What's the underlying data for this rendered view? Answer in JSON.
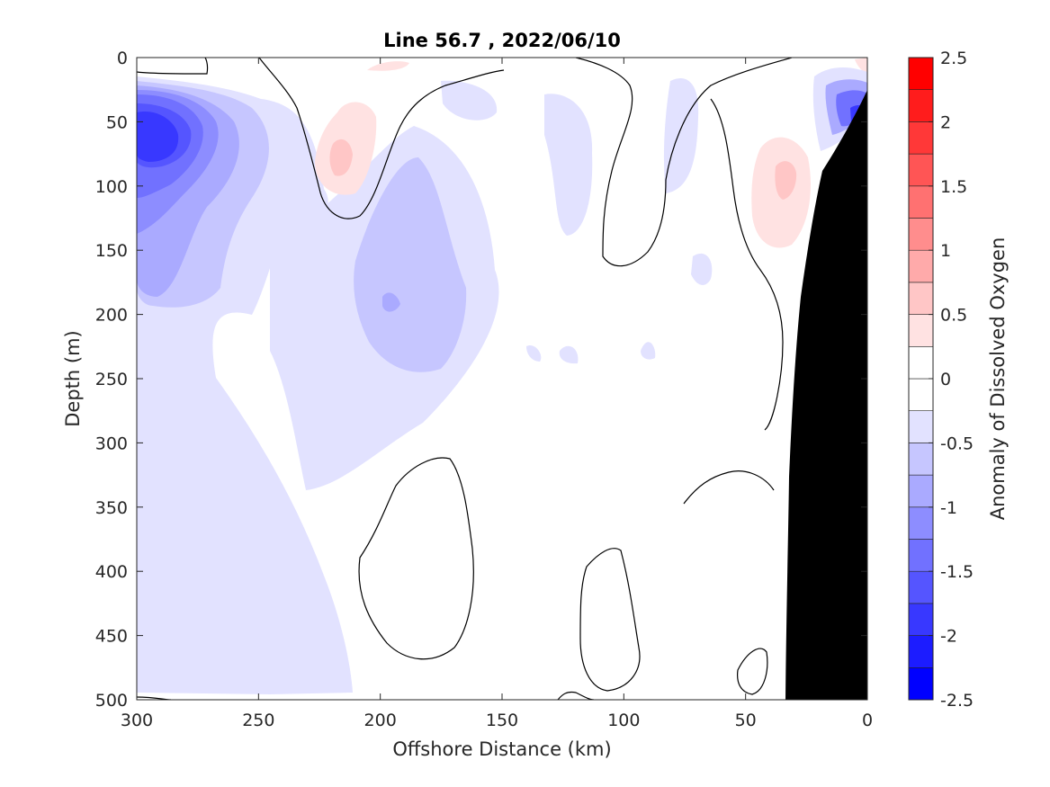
{
  "chart_data": {
    "type": "heatmap",
    "title": "Line 56.7 , 2022/06/10",
    "xlabel": "Offshore Distance (km)",
    "ylabel": "Depth (m)",
    "xlim": [
      300,
      0
    ],
    "ylim": [
      0,
      500
    ],
    "x_reversed": true,
    "y_reversed": true,
    "x_ticks": [
      {
        "value": 300,
        "label": "300"
      },
      {
        "value": 250,
        "label": "250"
      },
      {
        "value": 200,
        "label": "200"
      },
      {
        "value": 150,
        "label": "150"
      },
      {
        "value": 100,
        "label": "100"
      },
      {
        "value": 50,
        "label": "50"
      },
      {
        "value": 0,
        "label": "0"
      }
    ],
    "y_ticks": [
      {
        "value": 0,
        "label": "0"
      },
      {
        "value": 50,
        "label": "50"
      },
      {
        "value": 100,
        "label": "100"
      },
      {
        "value": 150,
        "label": "150"
      },
      {
        "value": 200,
        "label": "200"
      },
      {
        "value": 250,
        "label": "250"
      },
      {
        "value": 300,
        "label": "300"
      },
      {
        "value": 350,
        "label": "350"
      },
      {
        "value": 400,
        "label": "400"
      },
      {
        "value": 450,
        "label": "450"
      },
      {
        "value": 500,
        "label": "500"
      }
    ],
    "colorbar": {
      "label": "Anomaly of Dissolved Oxygen",
      "range": [
        -2.5,
        2.5
      ],
      "levels": [
        -2.5,
        -2.25,
        -2,
        -1.75,
        -1.5,
        -1.25,
        -1,
        -0.75,
        -0.5,
        -0.25,
        0,
        0.25,
        0.5,
        0.75,
        1,
        1.25,
        1.5,
        1.75,
        2,
        2.25,
        2.5
      ],
      "colors": [
        "#0000ff",
        "#1c1cff",
        "#3838ff",
        "#5555ff",
        "#7171ff",
        "#8d8dff",
        "#aaaaff",
        "#c6c6ff",
        "#e2e2ff",
        "#ffffff",
        "#ffffff",
        "#ffe2e2",
        "#ffc6c6",
        "#ffaaaa",
        "#ff8d8d",
        "#ff7171",
        "#ff5555",
        "#ff3838",
        "#ff1c1c",
        "#ff0000"
      ],
      "ticks": [
        {
          "value": 2.5,
          "label": "2.5"
        },
        {
          "value": 2,
          "label": "2"
        },
        {
          "value": 1.5,
          "label": "1.5"
        },
        {
          "value": 1,
          "label": "1"
        },
        {
          "value": 0.5,
          "label": "0.5"
        },
        {
          "value": 0,
          "label": "0"
        },
        {
          "value": -0.5,
          "label": "-0.5"
        },
        {
          "value": -1,
          "label": "-1"
        },
        {
          "value": -1.5,
          "label": "-1.5"
        },
        {
          "value": -2,
          "label": "-2"
        },
        {
          "value": -2.5,
          "label": "-2.5"
        }
      ]
    },
    "features": [
      {
        "kind": "negative-anomaly",
        "center_km": 290,
        "center_depth_m": 80,
        "min_value": -2.0
      },
      {
        "kind": "negative-anomaly",
        "center_km": 190,
        "center_depth_m": 190,
        "min_value": -1.0
      },
      {
        "kind": "positive-anomaly",
        "center_km": 218,
        "center_depth_m": 85,
        "max_value": 0.75
      },
      {
        "kind": "positive-anomaly",
        "center_km": 34,
        "center_depth_m": 95,
        "max_value": 0.75
      },
      {
        "kind": "negative-anomaly",
        "center_km": 8,
        "center_depth_m": 70,
        "min_value": -2.0
      }
    ],
    "bathymetry_color": "#000000",
    "contour_line_color": "#000000",
    "grid": false
  }
}
